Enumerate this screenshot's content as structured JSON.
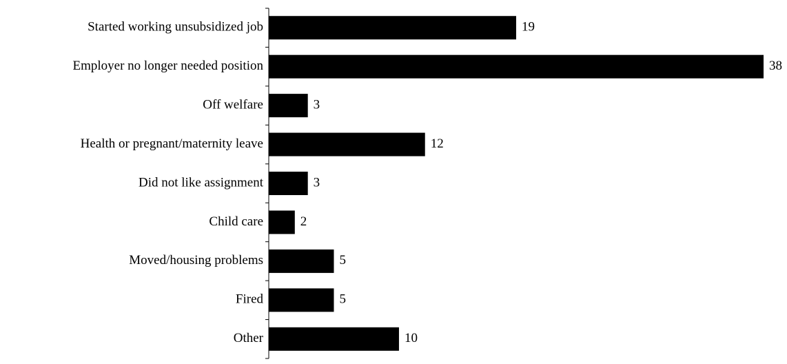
{
  "chart_data": {
    "type": "bar",
    "orientation": "horizontal",
    "categories": [
      "Started working unsubsidized job",
      "Employer no longer needed position",
      "Off welfare",
      "Health or pregnant/maternity leave",
      "Did not like assignment",
      "Child care",
      "Moved/housing problems",
      "Fired",
      "Other"
    ],
    "values": [
      19,
      38,
      3,
      12,
      3,
      2,
      5,
      5,
      10
    ],
    "color": "#000000"
  }
}
